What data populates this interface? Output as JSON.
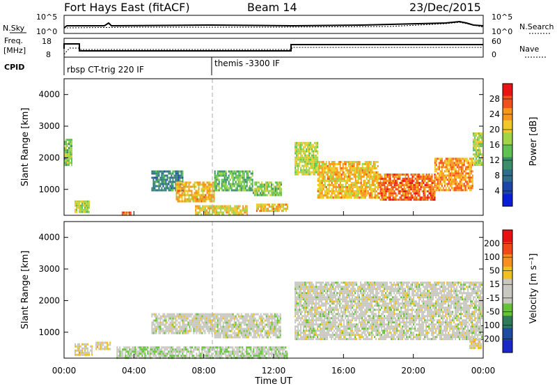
{
  "header": {
    "station": "Fort Hays East (fitACF)",
    "beam": "Beam 14",
    "date": "23/Dec/2015"
  },
  "top_panel": {
    "nsky_label": "N.Sky",
    "nsearch_label": "N.Search",
    "nsky_ticks": [
      "10^5",
      "10^0"
    ],
    "nsearch_ticks": [
      "10^5",
      "10^0"
    ]
  },
  "freq_panel": {
    "freq_label": "Freq.",
    "freq_unit": "[MHz]",
    "freq_ticks": [
      "18",
      "8"
    ],
    "nave_label": "Nave",
    "nave_ticks": [
      "60",
      "0"
    ]
  },
  "cpid_panel": {
    "label": "CPID",
    "segments": [
      {
        "name": "rbsp CT-trig 220 IF",
        "start_hour": 0.0
      },
      {
        "name": "themis -3300 IF",
        "start_hour": 8.6
      }
    ]
  },
  "colors": {
    "power": [
      "#0a1ed8",
      "#1e46a8",
      "#2e6e8a",
      "#3a8e6a",
      "#5ec250",
      "#a2d44a",
      "#f0c82a",
      "#f5961e",
      "#f0501e",
      "#e81414"
    ],
    "velocity": [
      "#1a28c8",
      "#1e4aa0",
      "#2e7a5a",
      "#66c23a",
      "#c8c8c0",
      "#c8c8c0",
      "#f0c020",
      "#f59020",
      "#f04818",
      "#e81010"
    ]
  },
  "chart_data": [
    {
      "type": "heatmap",
      "name": "power",
      "xlabel": "",
      "ylabel": "Slant Range [km]",
      "xlim": [
        0,
        24
      ],
      "ylim": [
        180,
        4500
      ],
      "yticks": [
        "4000",
        "3000",
        "2000",
        "1000"
      ],
      "colorbar": {
        "label": "Power [dB]",
        "ticks": [
          "28",
          "24",
          "20",
          "16",
          "12",
          "8",
          "4"
        ],
        "range": [
          0,
          32
        ]
      },
      "regions": [
        {
          "t0": 0.6,
          "t1": 1.4,
          "r0": 300,
          "r1": 650,
          "value": 18
        },
        {
          "t0": 3.3,
          "t1": 3.8,
          "r0": 200,
          "r1": 300,
          "value": 26
        },
        {
          "t0": 5.0,
          "t1": 6.8,
          "r0": 950,
          "r1": 1600,
          "value": 10
        },
        {
          "t0": 6.4,
          "t1": 8.6,
          "r0": 600,
          "r1": 1250,
          "value": 22
        },
        {
          "t0": 8.6,
          "t1": 10.8,
          "r0": 1000,
          "r1": 1600,
          "value": 14
        },
        {
          "t0": 10.8,
          "t1": 12.4,
          "r0": 850,
          "r1": 1250,
          "value": 16
        },
        {
          "t0": 7.5,
          "t1": 10.5,
          "r0": 200,
          "r1": 500,
          "value": 20
        },
        {
          "t0": 11.0,
          "t1": 12.8,
          "r0": 300,
          "r1": 550,
          "value": 22
        },
        {
          "t0": 13.2,
          "t1": 14.5,
          "r0": 1500,
          "r1": 2500,
          "value": 18
        },
        {
          "t0": 14.5,
          "t1": 18.0,
          "r0": 750,
          "r1": 1900,
          "value": 22
        },
        {
          "t0": 18.0,
          "t1": 21.2,
          "r0": 650,
          "r1": 1500,
          "value": 26
        },
        {
          "t0": 21.2,
          "t1": 23.4,
          "r0": 950,
          "r1": 2000,
          "value": 24
        },
        {
          "t0": 23.4,
          "t1": 23.9,
          "r0": 1800,
          "r1": 2800,
          "value": 18
        },
        {
          "t0": 0.0,
          "t1": 0.4,
          "r0": 1800,
          "r1": 2600,
          "value": 16
        }
      ]
    },
    {
      "type": "heatmap",
      "name": "velocity",
      "xlabel": "Time UT",
      "ylabel": "Slant Range [km]",
      "xlim": [
        0,
        24
      ],
      "ylim": [
        180,
        4500
      ],
      "xticks": [
        "00:00",
        "04:00",
        "08:00",
        "12:00",
        "16:00",
        "20:00",
        "00:00"
      ],
      "yticks": [
        "4000",
        "3000",
        "2000",
        "1000"
      ],
      "colorbar": {
        "label": "Velocity [m s⁻¹]",
        "ticks": [
          "200",
          "100",
          "50",
          "15",
          "-15",
          "-50",
          "-100",
          "-200"
        ],
        "range": [
          -250,
          250
        ]
      },
      "regions": [
        {
          "t0": 0.6,
          "t1": 1.6,
          "r0": 300,
          "r1": 650,
          "value": 40
        },
        {
          "t0": 1.8,
          "t1": 2.6,
          "r0": 450,
          "r1": 700,
          "value": 40
        },
        {
          "t0": 5.0,
          "t1": 8.6,
          "r0": 950,
          "r1": 1600,
          "value": 0
        },
        {
          "t0": 8.6,
          "t1": 12.4,
          "r0": 850,
          "r1": 1600,
          "value": 0
        },
        {
          "t0": 3.0,
          "t1": 12.8,
          "r0": 200,
          "r1": 550,
          "value": -30
        },
        {
          "t0": 13.2,
          "t1": 23.9,
          "r0": 750,
          "r1": 2600,
          "value": 0
        },
        {
          "t0": 23.2,
          "t1": 23.9,
          "r0": 500,
          "r1": 800,
          "value": 40
        }
      ]
    }
  ]
}
